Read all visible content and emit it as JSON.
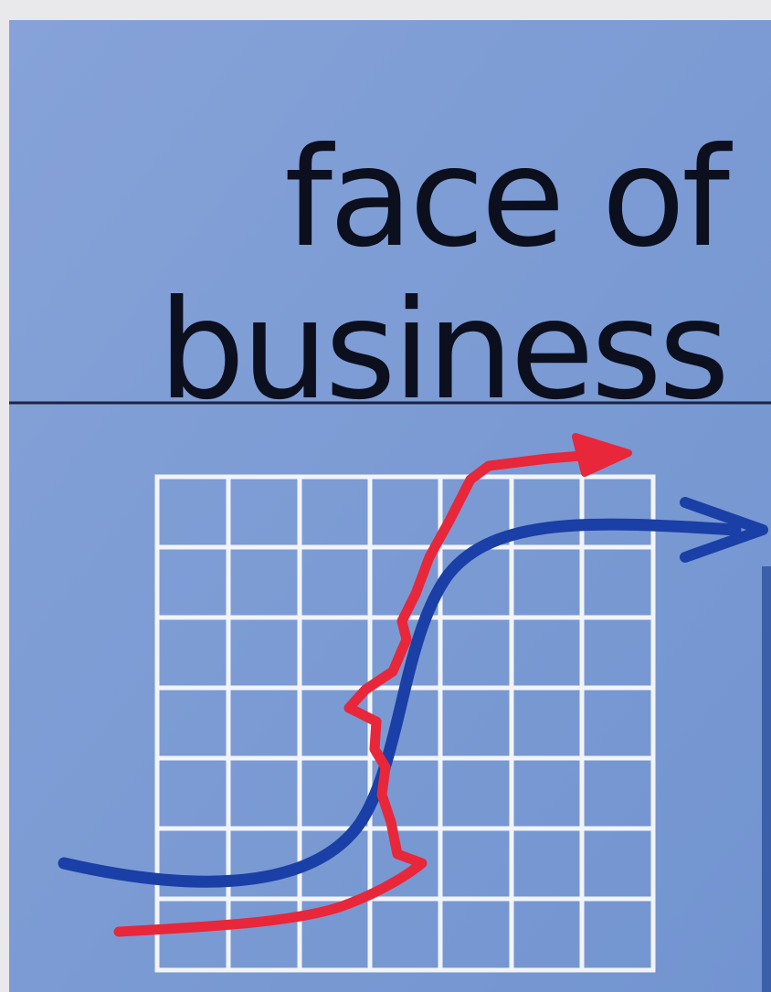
{
  "headline": {
    "lines": [
      "face of",
      "business"
    ]
  }
}
